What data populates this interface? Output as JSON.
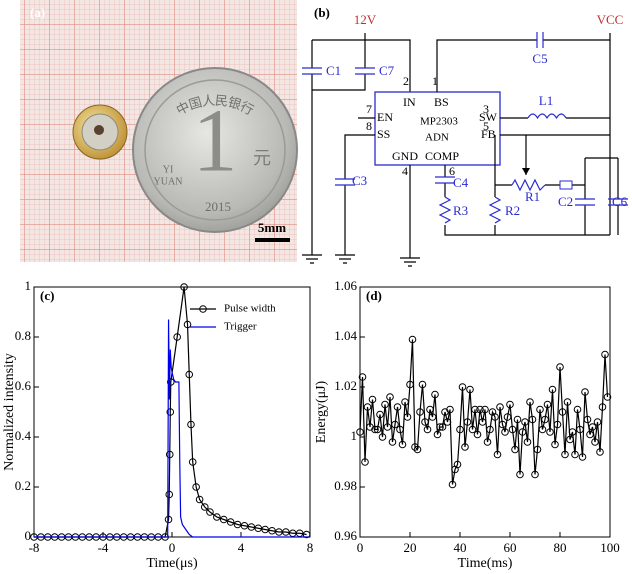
{
  "photo": {
    "panel_label": "(a)",
    "coin_top": "中国人民银行",
    "coin_value": "1",
    "coin_unit": "元",
    "coin_yi": "YI",
    "coin_yuan": "YUAN",
    "coin_year": "2015",
    "scale_bar": "5mm"
  },
  "circuit": {
    "panel_label": "(b)",
    "supply": "12V",
    "vcc": "VCC",
    "c1": "C1",
    "c7": "C7",
    "c5": "C5",
    "l1": "L1",
    "c3": "C3",
    "c4": "C4",
    "r3": "R3",
    "r2": "R2",
    "r1": "R1",
    "c2": "C2",
    "c6": "C6",
    "ic_name": "MP2303",
    "ic_suffix": "ADN",
    "pin_in": "IN",
    "pin_bs": "BS",
    "pin_en": "EN",
    "pin_sw": "SW",
    "pin_ss": "SS",
    "pin_fb": "FB",
    "pin_gnd": "GND",
    "pin_comp": "COMP",
    "n1": "1",
    "n2": "2",
    "n3": "3",
    "n4": "4",
    "n5": "5",
    "n6": "6",
    "n7": "7",
    "n8": "8"
  },
  "chart_data": [
    {
      "type": "line",
      "panel_label": "(c)",
      "xlabel": "Time(μs)",
      "ylabel": "Normalized intensity",
      "xlim": [
        -8,
        8
      ],
      "xticks": [
        -8,
        -4,
        0,
        4,
        8
      ],
      "ylim": [
        0,
        1
      ],
      "yticks": [
        0,
        0.2,
        0.4,
        0.6,
        0.8,
        1
      ],
      "legend": "upper right",
      "series": [
        {
          "name": "Pulse width",
          "color": "#000000",
          "marker": "circle",
          "x": [
            -8,
            -7.6,
            -7.2,
            -6.8,
            -6.4,
            -6,
            -5.6,
            -5.2,
            -4.8,
            -4.4,
            -4,
            -3.6,
            -3.2,
            -2.8,
            -2.4,
            -2,
            -1.6,
            -1.2,
            -0.8,
            -0.4,
            -0.2,
            -0.16,
            -0.13,
            -0.1,
            -0.07,
            0.3,
            0.7,
            0.9,
            1.0,
            1.1,
            1.2,
            1.4,
            1.6,
            1.9,
            2.2,
            2.6,
            3.0,
            3.4,
            3.8,
            4.2,
            4.6,
            5.0,
            5.4,
            5.8,
            6.2,
            6.6,
            7.0,
            7.4,
            7.8
          ],
          "values": [
            0,
            0,
            0,
            0,
            0,
            0,
            0,
            0,
            0,
            0,
            0,
            0,
            0,
            0,
            0,
            0,
            0,
            0,
            0,
            0,
            0.07,
            0.17,
            0.33,
            0.5,
            0.62,
            0.8,
            1,
            0.85,
            0.65,
            0.45,
            0.3,
            0.2,
            0.15,
            0.12,
            0.1,
            0.08,
            0.07,
            0.06,
            0.05,
            0.045,
            0.04,
            0.035,
            0.03,
            0.025,
            0.02,
            0.02,
            0.015,
            0.015,
            0.01
          ]
        },
        {
          "name": "Trigger",
          "color": "#0000ee",
          "x": [
            -8,
            -0.25,
            -0.2,
            -0.15,
            -0.1,
            -0.05,
            0,
            0.1,
            0.2,
            0.3,
            0.4,
            0.45,
            0.5,
            0.6,
            0.8,
            1.0,
            1.2,
            8
          ],
          "values": [
            0,
            0,
            0.87,
            0.55,
            0.75,
            0.68,
            0.66,
            0.63,
            0.62,
            0.62,
            0.62,
            0.3,
            0.08,
            0.05,
            0.03,
            0.01,
            0,
            0
          ]
        }
      ]
    },
    {
      "type": "line",
      "panel_label": "(d)",
      "xlabel": "Time(ms)",
      "ylabel": "Energy(μJ)",
      "xlim": [
        0,
        100
      ],
      "xticks": [
        0,
        20,
        40,
        60,
        80,
        100
      ],
      "ylim": [
        0.96,
        1.06
      ],
      "yticks": [
        0.96,
        0.98,
        1,
        1.02,
        1.04,
        1.06
      ],
      "x": [
        0,
        1,
        2,
        3,
        4,
        5,
        6,
        7,
        8,
        9,
        10,
        11,
        12,
        13,
        14,
        15,
        16,
        17,
        18,
        19,
        20,
        21,
        22,
        23,
        24,
        25,
        26,
        27,
        28,
        29,
        30,
        31,
        32,
        33,
        34,
        35,
        36,
        37,
        38,
        39,
        40,
        41,
        42,
        43,
        44,
        45,
        46,
        47,
        48,
        49,
        50,
        51,
        52,
        53,
        54,
        55,
        56,
        57,
        58,
        59,
        60,
        61,
        62,
        63,
        64,
        65,
        66,
        67,
        68,
        69,
        70,
        71,
        72,
        73,
        74,
        75,
        76,
        77,
        78,
        79,
        80,
        81,
        82,
        83,
        84,
        85,
        86,
        87,
        88,
        89,
        90,
        91,
        92,
        93,
        94,
        95,
        96,
        97,
        98,
        99
      ],
      "series": [
        {
          "color": "#000000",
          "marker": "circle",
          "values": [
            1.002,
            1.024,
            0.99,
            1.012,
            1.004,
            1.015,
            1.003,
            1.003,
            1.009,
            1.0,
            1.013,
            1.004,
            1.016,
            0.998,
            1.005,
            1.012,
            1.003,
            0.997,
            1.014,
            1.008,
            1.021,
            1.039,
            0.996,
            0.995,
            1.01,
            1.021,
            1.006,
            1.003,
            1.011,
            1.008,
            1.017,
            1.001,
            1.004,
            1.004,
            1.01,
            1.006,
            1.011,
            0.981,
            0.987,
            0.989,
            1.003,
            1.02,
            0.996,
            1.006,
            1.019,
            1.003,
            1.011,
            1.001,
            1.011,
            1.006,
            1.011,
            0.998,
            1.003,
            1.01,
            1.008,
            0.993,
            1.012,
            1.005,
            1.002,
            1.008,
            1.013,
            1.003,
            0.995,
            1.007,
            0.985,
            1.002,
            1.006,
            0.998,
            1.014,
            1.007,
            0.985,
            0.995,
            1.011,
            1.003,
            1.007,
            1.013,
            1.002,
            1.019,
            0.997,
            1.005,
            1.028,
            1.01,
            0.993,
            1.014,
            0.999,
            1.002,
            0.993,
            1.011,
            1.003,
            0.992,
            1.018,
            1.007,
            1.001,
            1.004,
            0.998,
            1.006,
            0.994,
            1.012,
            1.033,
            1.016
          ]
        }
      ]
    }
  ]
}
